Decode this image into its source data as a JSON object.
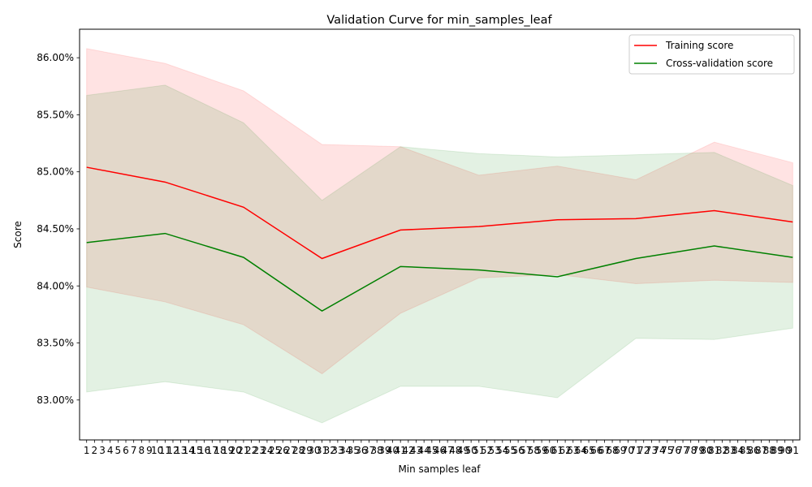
{
  "chart_data": {
    "type": "line",
    "title": "Validation Curve for min_samples_leaf",
    "xlabel": "Min samples leaf",
    "ylabel": "Score",
    "x_ticks": [
      1,
      2,
      3,
      4,
      5,
      6,
      7,
      8,
      9,
      10,
      11,
      12,
      13,
      14,
      15,
      16,
      17,
      18,
      19,
      20,
      21,
      22,
      23,
      24,
      25,
      26,
      27,
      28,
      29,
      30,
      31,
      32,
      33,
      34,
      35,
      36,
      37,
      38,
      39,
      40,
      41,
      42,
      43,
      44,
      45,
      46,
      47,
      48,
      49,
      50,
      51,
      52,
      53,
      54,
      55,
      56,
      57,
      58,
      59,
      60,
      61,
      62,
      63,
      64,
      65,
      66,
      67,
      68,
      69,
      70,
      71,
      72,
      73,
      74,
      75,
      76,
      77,
      78,
      79,
      80,
      81,
      82,
      83,
      84,
      85,
      86,
      87,
      88,
      89,
      90,
      91
    ],
    "xlim": [
      0.1,
      91.9
    ],
    "ylim": [
      0.8265,
      0.8625
    ],
    "y_ticks": [
      0.83,
      0.835,
      0.84,
      0.845,
      0.85,
      0.855,
      0.86
    ],
    "y_tick_labels": [
      "83.00%",
      "83.50%",
      "84.00%",
      "84.50%",
      "85.00%",
      "85.50%",
      "86.00%"
    ],
    "x": [
      1,
      11,
      21,
      31,
      41,
      51,
      61,
      71,
      81,
      91
    ],
    "series": [
      {
        "name": "Training score",
        "color": "#ff0000",
        "fill": "#ff0000",
        "values": [
          0.8504,
          0.8491,
          0.8469,
          0.8424,
          0.8449,
          0.8452,
          0.8458,
          0.8459,
          0.8466,
          0.8456
        ],
        "upper": [
          0.8608,
          0.8595,
          0.8571,
          0.8524,
          0.8522,
          0.8497,
          0.8505,
          0.8493,
          0.8526,
          0.8508
        ],
        "lower": [
          0.8399,
          0.8386,
          0.8366,
          0.8323,
          0.8376,
          0.8407,
          0.841,
          0.8402,
          0.8405,
          0.8403
        ]
      },
      {
        "name": "Cross-validation score",
        "color": "#008000",
        "fill": "#008000",
        "values": [
          0.8438,
          0.8446,
          0.8425,
          0.8378,
          0.8417,
          0.8414,
          0.8408,
          0.8424,
          0.8435,
          0.8425
        ],
        "upper": [
          0.8567,
          0.8576,
          0.8543,
          0.8475,
          0.8522,
          0.8516,
          0.8513,
          0.8515,
          0.8517,
          0.8488
        ],
        "lower": [
          0.8307,
          0.8316,
          0.8307,
          0.828,
          0.8312,
          0.8312,
          0.8302,
          0.8354,
          0.8353,
          0.8363
        ]
      }
    ],
    "legend_position": "top-right",
    "grid": false
  }
}
